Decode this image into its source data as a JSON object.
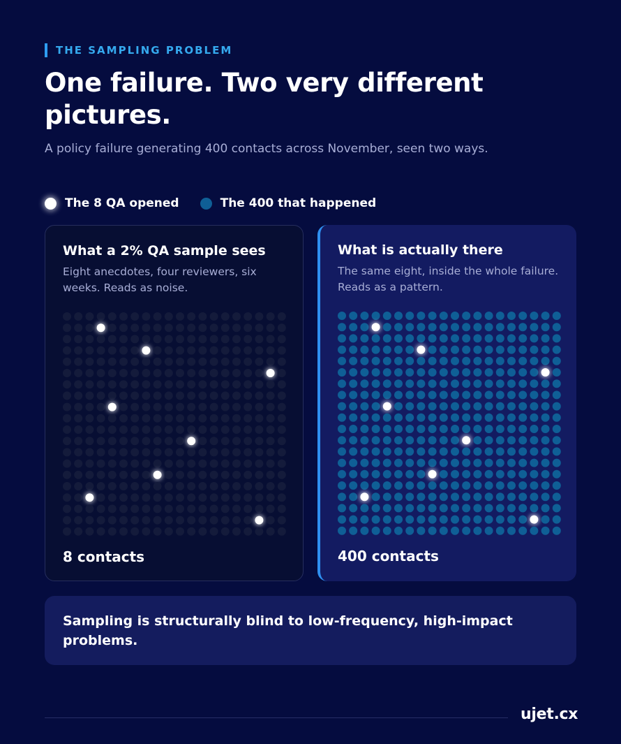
{
  "eyebrow": "THE SAMPLING PROBLEM",
  "title": "One failure. Two very different pictures.",
  "subtitle": "A policy failure generating 400 contacts across November, seen two ways.",
  "legend": {
    "opened": "The 8 QA opened",
    "happened": "The 400 that happened"
  },
  "colors": {
    "background": "#050c3f",
    "accent": "#2e9df2",
    "sample_dot": "#ffffff",
    "failure_dot": "#0f5f96",
    "inactive_dot": "#141b3b"
  },
  "left_panel": {
    "title": "What a 2% QA sample sees",
    "description": "Eight anecdotes, four reviewers, six weeks. Reads as noise.",
    "count": "8 contacts"
  },
  "right_panel": {
    "title": "What is actually there",
    "description": "The same eight, inside the whole failure. Reads as a pattern.",
    "count": "400 contacts"
  },
  "grid": {
    "columns": 20,
    "rows": 20,
    "sampled": [
      [
        3,
        1
      ],
      [
        7,
        3
      ],
      [
        18,
        5
      ],
      [
        4,
        8
      ],
      [
        11,
        11
      ],
      [
        8,
        14
      ],
      [
        2,
        16
      ],
      [
        17,
        18
      ]
    ]
  },
  "takeaway": "Sampling is structurally blind to low-frequency, high-impact problems.",
  "brand": "ujet.cx"
}
